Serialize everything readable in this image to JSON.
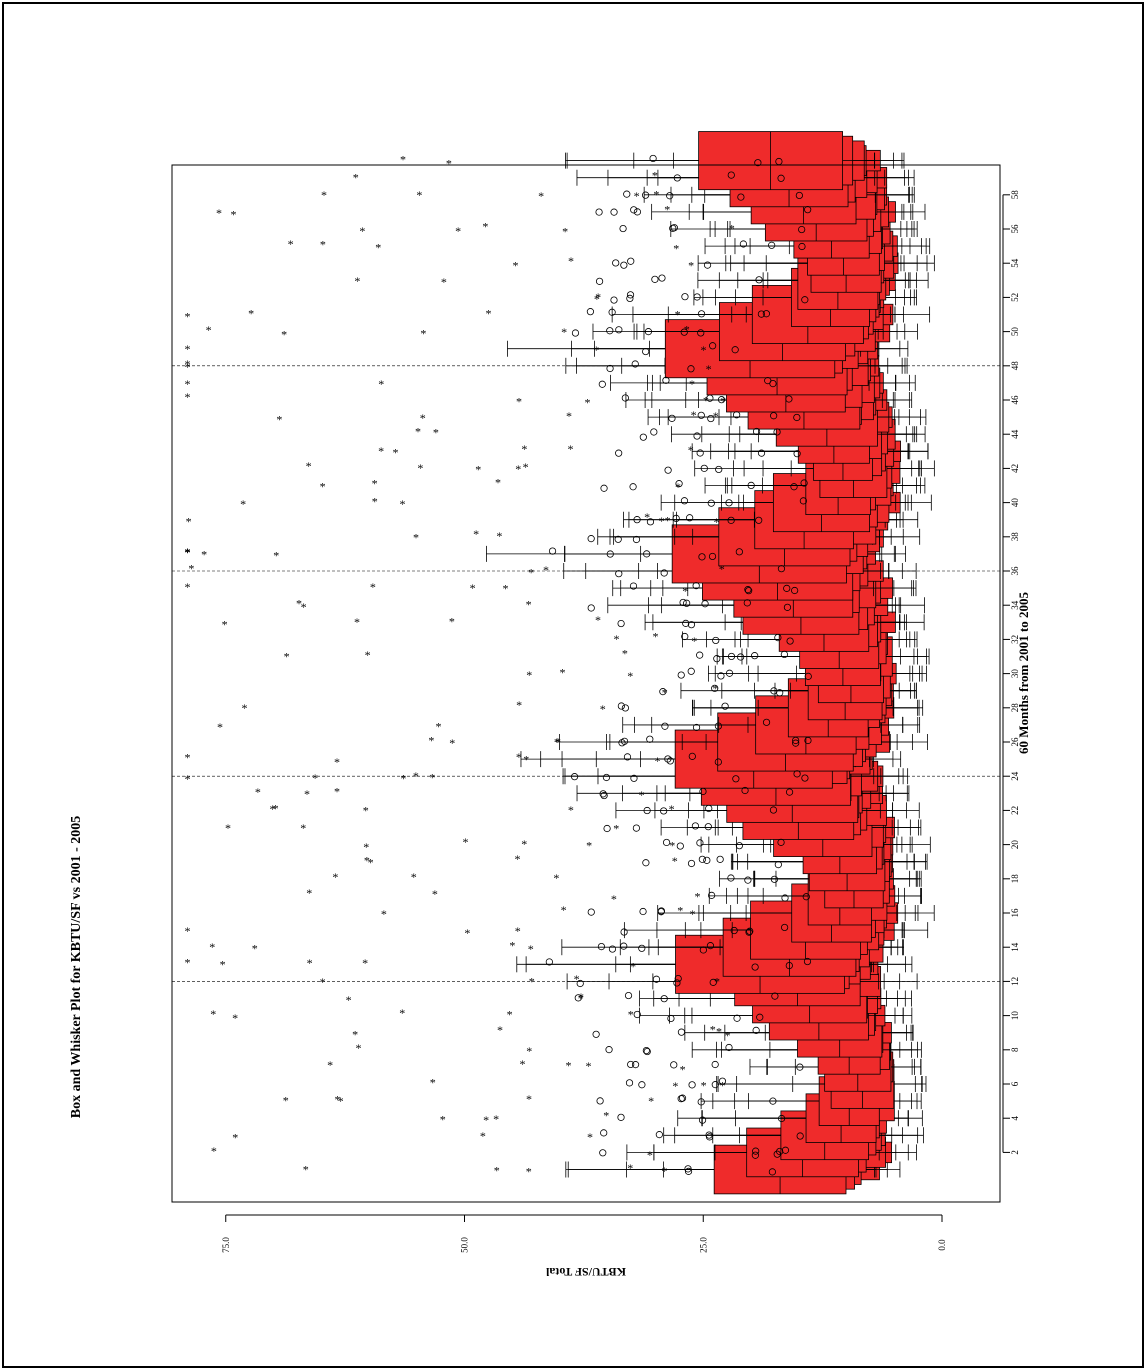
{
  "chart_data": {
    "type": "boxplot",
    "title": "Box and Whisker Plot for KBTU/SF vs 2001 - 2005",
    "xlabel": "60 Months from 2001 to 2005",
    "ylabel": "KBTU/SF Total",
    "x_ticks": [
      "2",
      "4",
      "6",
      "8",
      "10",
      "12",
      "14",
      "16",
      "18",
      "20",
      "22",
      "24",
      "26",
      "28",
      "30",
      "32",
      "34",
      "36",
      "38",
      "40",
      "42",
      "44",
      "46",
      "48",
      "50",
      "52",
      "54",
      "56",
      "58"
    ],
    "y_ticks": [
      "0.0",
      "25.0",
      "50.0",
      "75.0"
    ],
    "ylim": [
      -6,
      80
    ],
    "xlim": [
      0.5,
      61.5
    ],
    "year_separators": [
      12,
      24,
      36,
      48
    ],
    "box_color": "#ef2b2b",
    "outlier_symbols": [
      "circle",
      "star"
    ]
  }
}
